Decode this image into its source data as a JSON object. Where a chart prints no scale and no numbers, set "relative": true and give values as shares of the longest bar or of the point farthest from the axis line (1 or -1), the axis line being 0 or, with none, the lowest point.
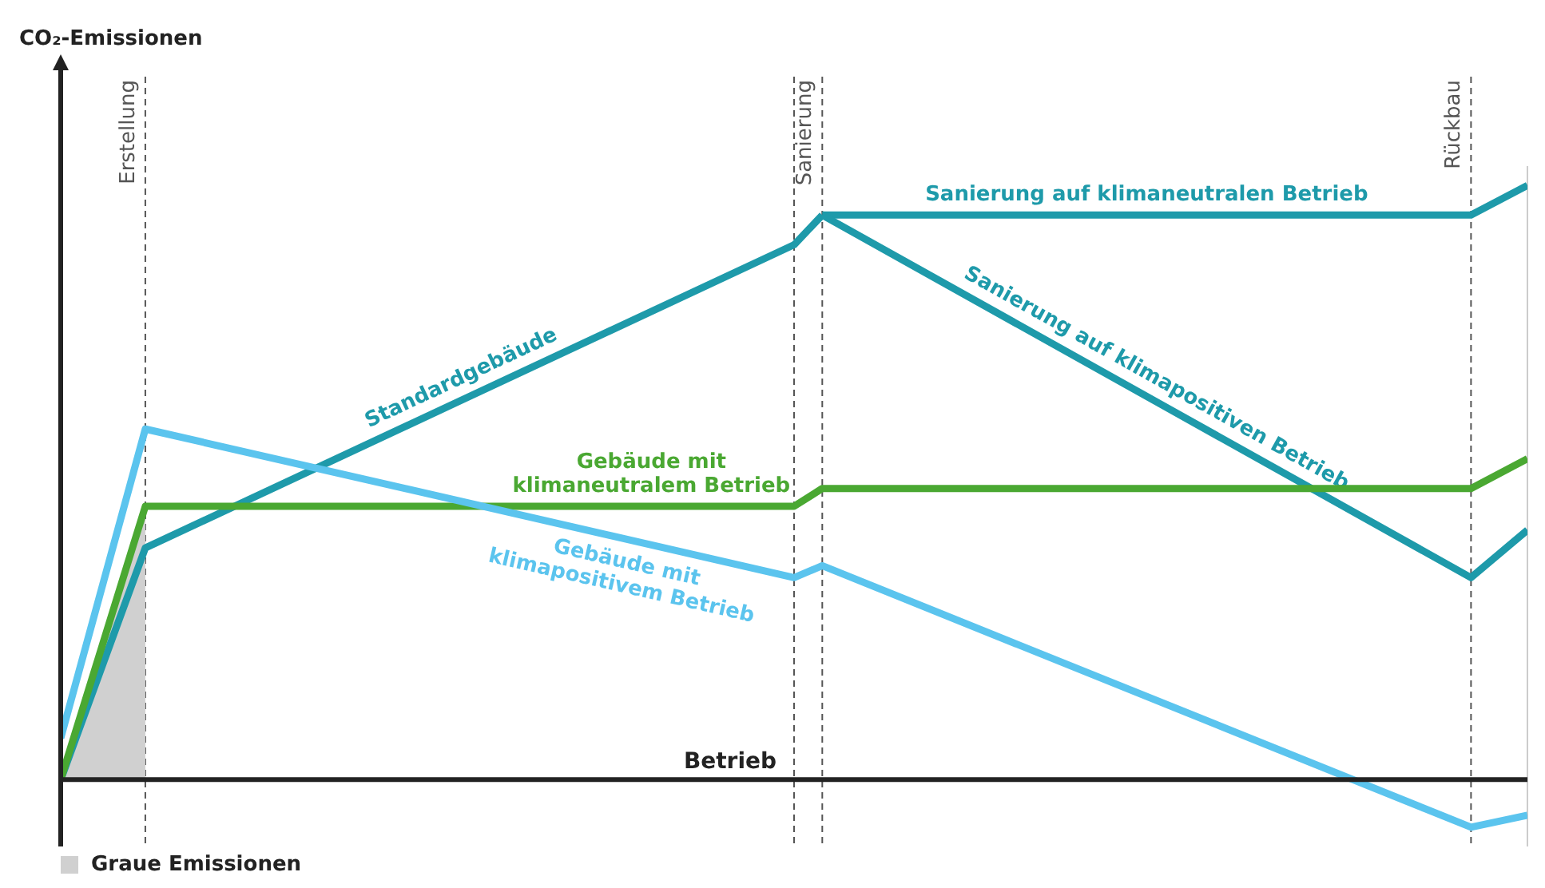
{
  "chart_data": {
    "type": "line",
    "relative": true,
    "tick_labels": false,
    "grid": "x",
    "legend": "bottom left",
    "annotations": [
      "CO₂-Emissionen",
      "Betrieb",
      "Erstellung",
      "Sanierung",
      "Rückbau"
    ],
    "categories": [
      null,
      null,
      null,
      null,
      null,
      null,
      null,
      null,
      null,
      null,
      null,
      null,
      null,
      null,
      null,
      null,
      null,
      null,
      null,
      null,
      null,
      null,
      null,
      null,
      null,
      null,
      null,
      null,
      null,
      null,
      null,
      null,
      null,
      null,
      null,
      null,
      null,
      null,
      null,
      null,
      null,
      null,
      null,
      null,
      null,
      null,
      null,
      null,
      null,
      null,
      null,
      null,
      null
    ],
    "series": [
      {
        "name": "Graue Emissionen",
        "type": "area",
        "color": "#d0d0d0",
        "values": [
          0,
          null,
          null,
          0.46,
          null,
          null,
          null,
          null,
          null,
          null,
          null,
          null,
          null,
          null,
          null,
          null,
          null,
          null,
          null,
          null,
          null,
          null,
          null,
          null,
          null,
          null,
          null,
          null,
          null,
          null,
          null,
          null,
          null,
          null,
          null,
          null,
          null,
          null,
          null,
          null,
          null,
          null,
          null,
          null,
          null,
          null,
          null,
          null,
          null,
          null,
          null,
          null,
          null
        ]
      },
      {
        "name": "Standardgebäude",
        "color": "#1e9aaa",
        "values": [
          0,
          null,
          null,
          0.39,
          null,
          null,
          null,
          null,
          null,
          null,
          null,
          null,
          null,
          null,
          null,
          null,
          null,
          null,
          null,
          null,
          null,
          null,
          null,
          null,
          null,
          null,
          0.9,
          0.95,
          null,
          null,
          null,
          null,
          null,
          null,
          null,
          null,
          null,
          null,
          null,
          null,
          null,
          null,
          null,
          null,
          null,
          null,
          null,
          null,
          null,
          null,
          null,
          null,
          null
        ]
      },
      {
        "name": "Sanierung auf klimaneutralen Betrieb",
        "color": "#1e9aaa",
        "values": [
          null,
          null,
          null,
          null,
          null,
          null,
          null,
          null,
          null,
          null,
          null,
          null,
          null,
          null,
          null,
          null,
          null,
          null,
          null,
          null,
          null,
          null,
          null,
          null,
          null,
          null,
          null,
          0.95,
          null,
          null,
          null,
          null,
          null,
          null,
          null,
          null,
          null,
          null,
          null,
          null,
          null,
          null,
          null,
          null,
          null,
          null,
          null,
          null,
          null,
          null,
          0.95,
          null,
          1.0
        ]
      },
      {
        "name": "Sanierung auf klimapositiven Betrieb",
        "color": "#1e9aaa",
        "values": [
          null,
          null,
          null,
          null,
          null,
          null,
          null,
          null,
          null,
          null,
          null,
          null,
          null,
          null,
          null,
          null,
          null,
          null,
          null,
          null,
          null,
          null,
          null,
          null,
          null,
          null,
          null,
          0.95,
          null,
          null,
          null,
          null,
          null,
          null,
          null,
          null,
          null,
          null,
          null,
          null,
          null,
          null,
          null,
          null,
          null,
          null,
          null,
          null,
          null,
          null,
          0.34,
          null,
          0.42
        ]
      },
      {
        "name": "Gebäude mit klimaneutralem Betrieb",
        "color": "#4aa832",
        "values": [
          0,
          null,
          null,
          0.46,
          null,
          null,
          null,
          null,
          null,
          null,
          null,
          null,
          null,
          null,
          null,
          null,
          null,
          null,
          null,
          null,
          null,
          null,
          null,
          null,
          null,
          null,
          0.46,
          0.49,
          null,
          null,
          null,
          null,
          null,
          null,
          null,
          null,
          null,
          null,
          null,
          null,
          null,
          null,
          null,
          null,
          null,
          null,
          null,
          null,
          null,
          null,
          0.49,
          null,
          0.54
        ]
      },
      {
        "name": "Gebäude mit klimapositivem Betrieb",
        "color": "#5bc4ee",
        "values": [
          0.07,
          null,
          null,
          0.59,
          null,
          null,
          null,
          null,
          null,
          null,
          null,
          null,
          null,
          null,
          null,
          null,
          null,
          null,
          null,
          null,
          null,
          null,
          null,
          null,
          null,
          null,
          0.34,
          0.36,
          null,
          null,
          null,
          null,
          null,
          null,
          null,
          null,
          null,
          null,
          null,
          null,
          null,
          null,
          null,
          null,
          null,
          null,
          null,
          null,
          null,
          null,
          -0.08,
          null,
          -0.06
        ]
      }
    ]
  }
}
